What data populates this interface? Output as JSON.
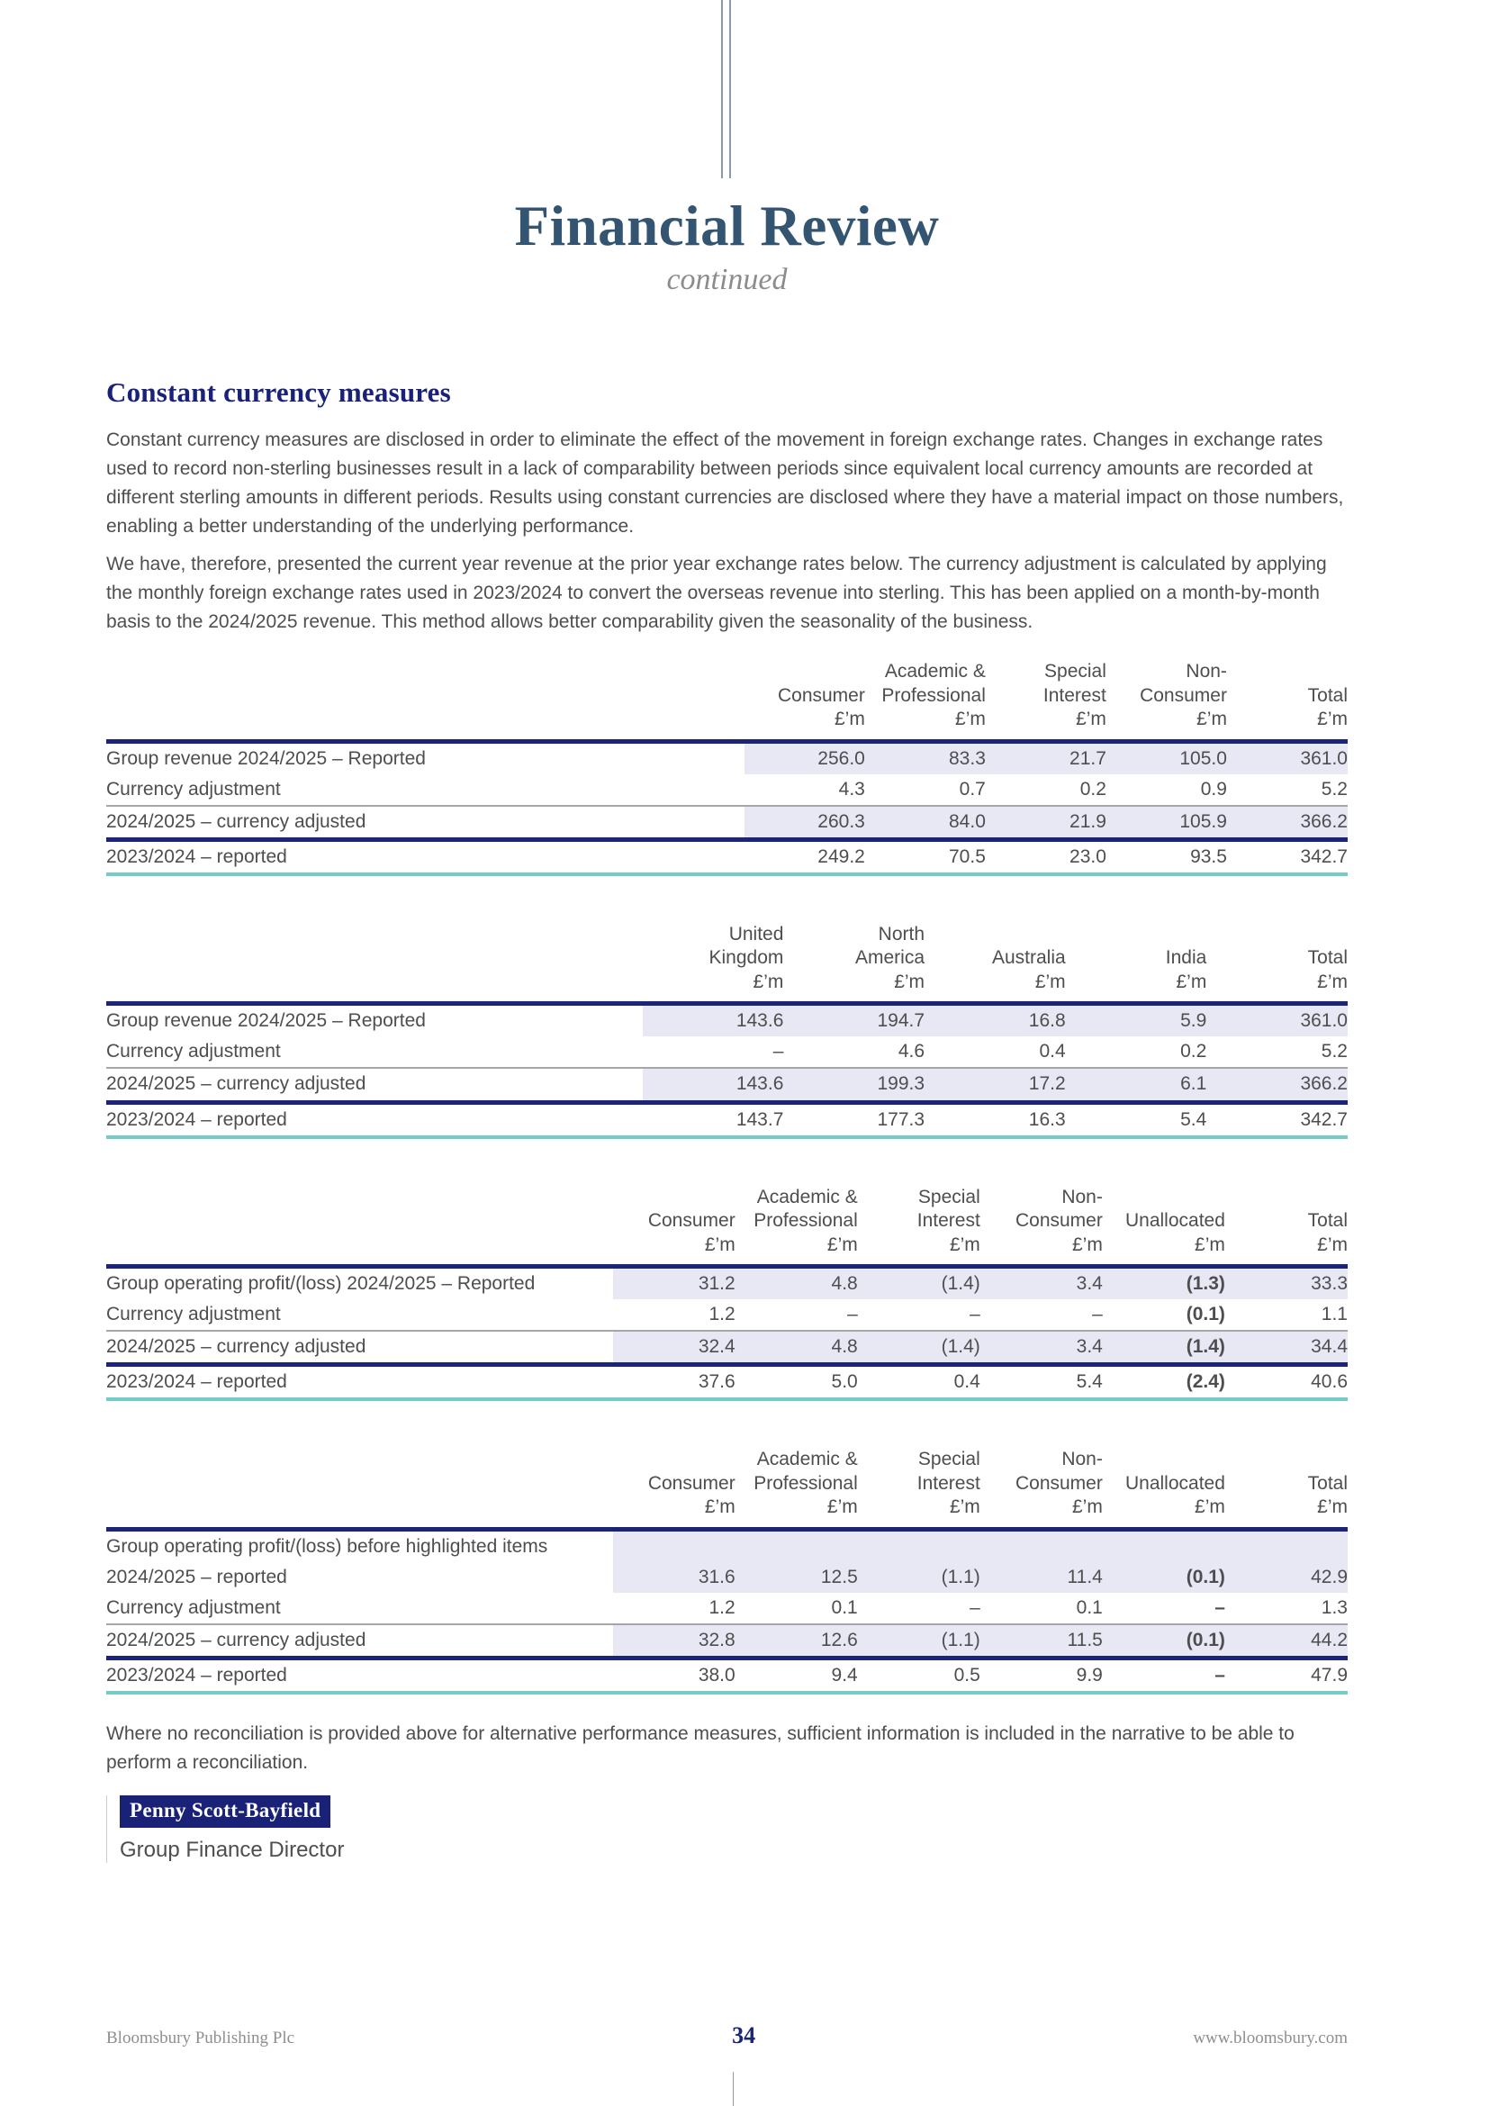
{
  "header": {
    "title": "Financial Review",
    "subtitle": "continued"
  },
  "section": {
    "heading": "Constant currency measures",
    "paragraphs": [
      "Constant currency measures are disclosed in order to eliminate the effect of the movement in foreign exchange rates. Changes in exchange rates used to record non-sterling businesses result in a lack of comparability between periods since equivalent local currency amounts are recorded at different sterling amounts in different periods. Results using constant currencies are disclosed where they have a material impact on those numbers, enabling a better understanding of the underlying performance.",
      "We have, therefore, presented the current year revenue at the prior year exchange rates below. The currency adjustment is calculated by applying the monthly foreign exchange rates used in 2023/2024 to convert the overseas revenue into sterling. This has been applied on a month-by-month basis to the 2024/2025 revenue. This method allows better comparability given the seasonality of the business."
    ],
    "closing_paragraph": "Where no reconciliation is provided above for alternative performance measures, sufficient information is included in the narrative to be able to perform a reconciliation."
  },
  "signature": {
    "name": "Penny Scott-Bayfield",
    "role": "Group Finance Director"
  },
  "footer": {
    "left": "Bloomsbury Publishing Plc",
    "page_number": "34",
    "right": "www.bloomsbury.com"
  },
  "colors": {
    "title_slate": "#345571",
    "heading_navy": "#1a2178",
    "rule_navy": "#1b2478",
    "rule_teal": "#74cbc7",
    "rule_gray": "#a6a6a8",
    "row_shade": "#e7e8f4",
    "badge_background": "#1a2277",
    "badge_text": "#ffffff",
    "body_text": "#4e4e50",
    "footer_text": "#8e8e8e"
  },
  "tables": [
    {
      "name": "group-revenue-by-division-table",
      "unit": "£’m",
      "label_col_pct": 51.4,
      "bold_col": null,
      "columns": [
        {
          "lines": [
            "Consumer"
          ]
        },
        {
          "lines": [
            "Academic &",
            "Professional"
          ]
        },
        {
          "lines": [
            "Special",
            "Interest"
          ]
        },
        {
          "lines": [
            "Non-",
            "Consumer"
          ]
        },
        {
          "lines": [
            "Total"
          ]
        }
      ],
      "rows": [
        {
          "label": "Group revenue 2024/2025 – Reported",
          "values": [
            "256.0",
            "83.3",
            "21.7",
            "105.0",
            "361.0"
          ],
          "shaded": true,
          "rule_below": null
        },
        {
          "label": "Currency adjustment",
          "values": [
            "4.3",
            "0.7",
            "0.2",
            "0.9",
            "5.2"
          ],
          "shaded": false,
          "rule_below": "gray"
        },
        {
          "label": "2024/2025 – currency adjusted",
          "values": [
            "260.3",
            "84.0",
            "21.9",
            "105.9",
            "366.2"
          ],
          "shaded": true,
          "rule_below": "navy"
        },
        {
          "label": "2023/2024 – reported",
          "values": [
            "249.2",
            "70.5",
            "23.0",
            "93.5",
            "342.7"
          ],
          "shaded": false,
          "rule_below": null
        }
      ]
    },
    {
      "name": "group-revenue-by-geography-table",
      "unit": "£’m",
      "label_col_pct": 43.2,
      "bold_col": null,
      "columns": [
        {
          "lines": [
            "United",
            "Kingdom"
          ]
        },
        {
          "lines": [
            "North",
            "America"
          ]
        },
        {
          "lines": [
            "Australia"
          ]
        },
        {
          "lines": [
            "India"
          ]
        },
        {
          "lines": [
            "Total"
          ]
        }
      ],
      "rows": [
        {
          "label": "Group revenue 2024/2025 – Reported",
          "values": [
            "143.6",
            "194.7",
            "16.8",
            "5.9",
            "361.0"
          ],
          "shaded": true,
          "rule_below": null
        },
        {
          "label": "Currency adjustment",
          "values": [
            "–",
            "4.6",
            "0.4",
            "0.2",
            "5.2"
          ],
          "shaded": false,
          "rule_below": "gray"
        },
        {
          "label": "2024/2025 – currency adjusted",
          "values": [
            "143.6",
            "199.3",
            "17.2",
            "6.1",
            "366.2"
          ],
          "shaded": true,
          "rule_below": "navy"
        },
        {
          "label": "2023/2024 – reported",
          "values": [
            "143.7",
            "177.3",
            "16.3",
            "5.4",
            "342.7"
          ],
          "shaded": false,
          "rule_below": null
        }
      ]
    },
    {
      "name": "group-operating-profit-table",
      "unit": "£’m",
      "label_col_pct": 40.8,
      "bold_col": 4,
      "columns": [
        {
          "lines": [
            "Consumer"
          ]
        },
        {
          "lines": [
            "Academic &",
            "Professional"
          ]
        },
        {
          "lines": [
            "Special",
            "Interest"
          ]
        },
        {
          "lines": [
            "Non-",
            "Consumer"
          ]
        },
        {
          "lines": [
            "Unallocated"
          ]
        },
        {
          "lines": [
            "Total"
          ]
        }
      ],
      "rows": [
        {
          "label": "Group operating profit/(loss) 2024/2025 – Reported",
          "values": [
            "31.2",
            "4.8",
            "(1.4)",
            "3.4",
            "(1.3)",
            "33.3"
          ],
          "shaded": true,
          "rule_below": null
        },
        {
          "label": "Currency adjustment",
          "values": [
            "1.2",
            "–",
            "–",
            "–",
            "(0.1)",
            "1.1"
          ],
          "shaded": false,
          "rule_below": "gray"
        },
        {
          "label": "2024/2025 – currency adjusted",
          "values": [
            "32.4",
            "4.8",
            "(1.4)",
            "3.4",
            "(1.4)",
            "34.4"
          ],
          "shaded": true,
          "rule_below": "navy"
        },
        {
          "label": "2023/2024 – reported",
          "values": [
            "37.6",
            "5.0",
            "0.4",
            "5.4",
            "(2.4)",
            "40.6"
          ],
          "shaded": false,
          "rule_below": null
        }
      ]
    },
    {
      "name": "group-operating-profit-before-highlighted-items-table",
      "unit": "£’m",
      "label_col_pct": 40.8,
      "bold_col": 4,
      "columns": [
        {
          "lines": [
            "Consumer"
          ]
        },
        {
          "lines": [
            "Academic &",
            "Professional"
          ]
        },
        {
          "lines": [
            "Special",
            "Interest"
          ]
        },
        {
          "lines": [
            "Non-",
            "Consumer"
          ]
        },
        {
          "lines": [
            "Unallocated"
          ]
        },
        {
          "lines": [
            "Total"
          ]
        }
      ],
      "rows": [
        {
          "label": "Group operating profit/(loss) before highlighted items",
          "values": [
            "",
            "",
            "",
            "",
            "",
            ""
          ],
          "shaded": true,
          "rule_below": null
        },
        {
          "label": "2024/2025 – reported",
          "values": [
            "31.6",
            "12.5",
            "(1.1)",
            "11.4",
            "(0.1)",
            "42.9"
          ],
          "shaded": true,
          "rule_below": null
        },
        {
          "label": "Currency adjustment",
          "values": [
            "1.2",
            "0.1",
            "–",
            "0.1",
            "–",
            "1.3"
          ],
          "shaded": false,
          "rule_below": "gray"
        },
        {
          "label": "2024/2025 – currency adjusted",
          "values": [
            "32.8",
            "12.6",
            "(1.1)",
            "11.5",
            "(0.1)",
            "44.2"
          ],
          "shaded": true,
          "rule_below": "navy"
        },
        {
          "label": "2023/2024 – reported",
          "values": [
            "38.0",
            "9.4",
            "0.5",
            "9.9",
            "–",
            "47.9"
          ],
          "shaded": false,
          "rule_below": null
        }
      ]
    }
  ]
}
